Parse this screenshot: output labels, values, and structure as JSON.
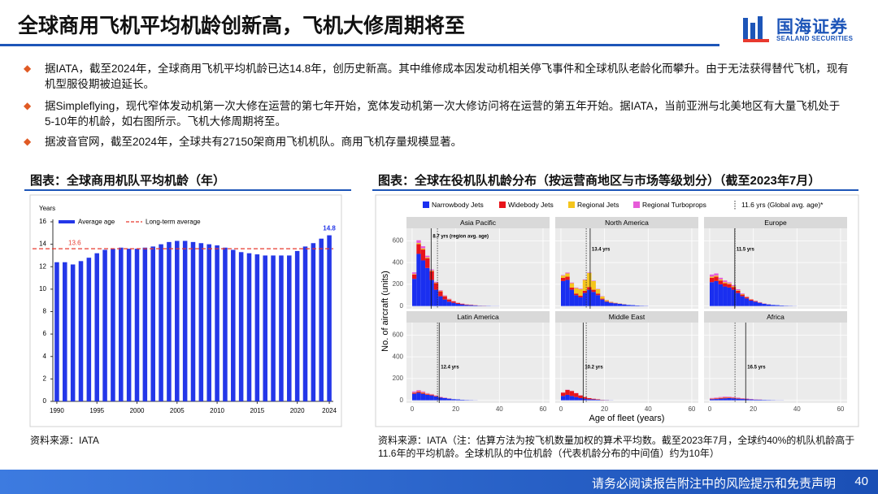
{
  "header": {
    "title": "全球商用飞机平均机龄创新高，飞机大修周期将至",
    "logo": "国海证券",
    "logo_en": "SEALAND SECURITIES"
  },
  "bullets": [
    "据IATA，截至2024年，全球商用飞机平均机龄已达14.8年，创历史新高。其中维修成本因发动机相关停飞事件和全球机队老龄化而攀升。由于无法获得替代飞机，现有机型服役期被迫延长。",
    "据Simpleflying，现代窄体发动机第一次大修在运营的第七年开始，宽体发动机第一次大修访问将在运营的第五年开始。据IATA，当前亚洲与北美地区有大量飞机处于5-10年的机龄，如右图所示。飞机大修周期将至。",
    "据波音官网，截至2024年，全球共有27150架商用飞机机队。商用飞机存量规模显著。"
  ],
  "figures": [
    {
      "caption": "图表：全球商用机队平均机龄（年）",
      "source": "资料来源：IATA"
    },
    {
      "caption": "图表：全球在役机队机龄分布（按运营商地区与市场等级划分）（截至2023年7月）",
      "source": "资料来源：IATA（注：估算方法为按飞机数量加权的算术平均数。截至2023年7月，全球约40%的机队机龄高于11.6年的平均机龄。全球机队的中位机龄（代表机龄分布的中间值）约为10年）"
    }
  ],
  "footer": {
    "disclaimer": "请务必阅读报告附注中的风险提示和免责声明",
    "page": "40"
  },
  "chart_data": [
    {
      "type": "bar",
      "y_label": "Years",
      "categories": [
        "1990",
        null,
        null,
        null,
        null,
        "1995",
        null,
        null,
        null,
        null,
        "2000",
        null,
        null,
        null,
        null,
        "2005",
        null,
        null,
        null,
        null,
        "2010",
        null,
        null,
        null,
        null,
        "2015",
        null,
        null,
        null,
        null,
        "2020",
        null,
        null,
        null,
        "2024"
      ],
      "series": [
        {
          "name": "Average age",
          "color": "#2437e8",
          "values": [
            12.4,
            12.4,
            12.2,
            12.5,
            12.8,
            13.2,
            13.5,
            13.6,
            13.7,
            13.6,
            13.6,
            13.7,
            13.8,
            14.0,
            14.2,
            14.3,
            14.3,
            14.2,
            14.1,
            14.0,
            13.9,
            13.7,
            13.5,
            13.3,
            13.2,
            13.1,
            13.0,
            13.0,
            13.0,
            13.0,
            13.4,
            13.8,
            14.1,
            14.5,
            14.8
          ]
        }
      ],
      "reference": {
        "name": "Long-term average",
        "value": 13.6,
        "color": "#e8392e"
      },
      "ylim": [
        0,
        16
      ],
      "yticks": [
        0,
        2,
        4,
        6,
        8,
        10,
        12,
        14,
        16
      ],
      "grid": false
    },
    {
      "type": "histogram",
      "x_label": "Age of fleet (years)",
      "y_label": "No. of aircraft (units)",
      "bins": [
        0,
        2,
        4,
        6,
        8,
        10,
        12,
        14,
        16,
        18,
        20,
        22,
        24,
        26,
        28,
        30,
        32,
        34,
        36,
        38,
        40
      ],
      "xlim": [
        -2.6,
        63
      ],
      "xticks": [
        0,
        20,
        40,
        60
      ],
      "ylim": [
        -25,
        715
      ],
      "yticks": [
        0,
        200,
        400,
        600
      ],
      "global_avg": {
        "value": 11.6,
        "label": "11.6 yrs (Global avg. age)*"
      },
      "panels": [
        {
          "title": "Asia Pacific",
          "avg": {
            "value": 8.7,
            "label": "8.7 yrs (region avg. age)"
          }
        },
        {
          "title": "North America",
          "avg": {
            "value": 13.4,
            "label": "13.4 yrs"
          }
        },
        {
          "title": "Europe",
          "avg": {
            "value": 11.5,
            "label": "11.5 yrs"
          }
        },
        {
          "title": "Latin America",
          "avg": {
            "value": 12.4,
            "label": "12.4 yrs"
          }
        },
        {
          "title": "Middle East",
          "avg": {
            "value": 10.2,
            "label": "10.2 yrs"
          }
        },
        {
          "title": "Africa",
          "avg": {
            "value": 16.5,
            "label": "16.5 yrs"
          }
        }
      ],
      "series": [
        {
          "name": "Narrowbody Jets",
          "color": "#1a2ff0",
          "values": [
            [
              250,
              480,
              420,
              350,
              240,
              150,
              90,
              60,
              40,
              30,
              20,
              15,
              10,
              8,
              5,
              3,
              2,
              2,
              1,
              1
            ],
            [
              230,
              240,
              150,
              100,
              80,
              120,
              150,
              130,
              100,
              60,
              40,
              30,
              25,
              20,
              15,
              10,
              8,
              5,
              3,
              2
            ],
            [
              220,
              230,
              200,
              180,
              170,
              150,
              120,
              90,
              70,
              50,
              40,
              30,
              20,
              15,
              10,
              8,
              5,
              3,
              2,
              1
            ],
            [
              60,
              70,
              60,
              50,
              45,
              35,
              25,
              20,
              15,
              10,
              8,
              5,
              3,
              2,
              1,
              0,
              0,
              0,
              0,
              0
            ],
            [
              40,
              50,
              40,
              30,
              20,
              15,
              10,
              8,
              5,
              3,
              2,
              1,
              0,
              0,
              0,
              0,
              0,
              0,
              0,
              0
            ],
            [
              10,
              12,
              15,
              18,
              20,
              18,
              15,
              12,
              10,
              8,
              6,
              5,
              4,
              3,
              2,
              1,
              1,
              0,
              0,
              0
            ]
          ]
        },
        {
          "name": "Widebody Jets",
          "color": "#e8141b",
          "values": [
            [
              40,
              90,
              100,
              90,
              80,
              60,
              45,
              30,
              20,
              12,
              8,
              5,
              4,
              3,
              2,
              1,
              1,
              0,
              0,
              0
            ],
            [
              30,
              30,
              20,
              15,
              15,
              20,
              25,
              20,
              15,
              8,
              5,
              3,
              2,
              1,
              1,
              0,
              0,
              0,
              0,
              0
            ],
            [
              40,
              40,
              35,
              30,
              30,
              25,
              20,
              15,
              10,
              8,
              5,
              3,
              2,
              1,
              0,
              0,
              0,
              0,
              0,
              0
            ],
            [
              8,
              10,
              8,
              6,
              5,
              4,
              3,
              2,
              1,
              0,
              0,
              0,
              0,
              0,
              0,
              0,
              0,
              0,
              0,
              0
            ],
            [
              30,
              45,
              45,
              35,
              25,
              15,
              10,
              6,
              4,
              2,
              1,
              0,
              0,
              0,
              0,
              0,
              0,
              0,
              0,
              0
            ],
            [
              4,
              5,
              6,
              6,
              5,
              5,
              4,
              3,
              3,
              2,
              1,
              1,
              0,
              0,
              0,
              0,
              0,
              0,
              0,
              0
            ]
          ]
        },
        {
          "name": "Regional Jets",
          "color": "#f5c51c",
          "values": [
            [
              5,
              10,
              10,
              8,
              6,
              5,
              4,
              3,
              3,
              2,
              2,
              1,
              1,
              1,
              0,
              0,
              0,
              0,
              0,
              0
            ],
            [
              20,
              30,
              40,
              50,
              60,
              100,
              130,
              80,
              40,
              20,
              10,
              5,
              3,
              2,
              1,
              0,
              0,
              0,
              0,
              0
            ],
            [
              10,
              10,
              10,
              10,
              8,
              8,
              6,
              5,
              4,
              3,
              2,
              1,
              0,
              0,
              0,
              0,
              0,
              0,
              0,
              0
            ],
            [
              3,
              4,
              5,
              4,
              3,
              2,
              1,
              0,
              0,
              0,
              0,
              0,
              0,
              0,
              0,
              0,
              0,
              0,
              0,
              0
            ],
            [
              1,
              1,
              1,
              0,
              0,
              0,
              0,
              0,
              0,
              0,
              0,
              0,
              0,
              0,
              0,
              0,
              0,
              0,
              0,
              0
            ],
            [
              2,
              2,
              3,
              3,
              3,
              2,
              2,
              1,
              0,
              0,
              0,
              0,
              0,
              0,
              0,
              0,
              0,
              0,
              0,
              0
            ]
          ]
        },
        {
          "name": "Regional Turboprops",
          "color": "#e65bd8",
          "values": [
            [
              15,
              25,
              20,
              15,
              10,
              8,
              6,
              5,
              4,
              3,
              2,
              2,
              1,
              1,
              0,
              0,
              0,
              0,
              0,
              0
            ],
            [
              5,
              8,
              6,
              5,
              5,
              5,
              4,
              4,
              3,
              3,
              2,
              2,
              1,
              1,
              0,
              0,
              0,
              0,
              0,
              0
            ],
            [
              20,
              20,
              15,
              15,
              10,
              10,
              8,
              6,
              5,
              4,
              3,
              2,
              1,
              0,
              0,
              0,
              0,
              0,
              0,
              0
            ],
            [
              10,
              10,
              8,
              6,
              5,
              4,
              3,
              2,
              1,
              0,
              0,
              0,
              0,
              0,
              0,
              0,
              0,
              0,
              0,
              0
            ],
            [
              2,
              2,
              2,
              2,
              1,
              0,
              0,
              0,
              0,
              0,
              0,
              0,
              0,
              0,
              0,
              0,
              0,
              0,
              0,
              0
            ],
            [
              5,
              5,
              6,
              6,
              5,
              4,
              4,
              3,
              3,
              2,
              1,
              1,
              0,
              0,
              0,
              0,
              0,
              0,
              0,
              0
            ]
          ]
        }
      ]
    }
  ]
}
